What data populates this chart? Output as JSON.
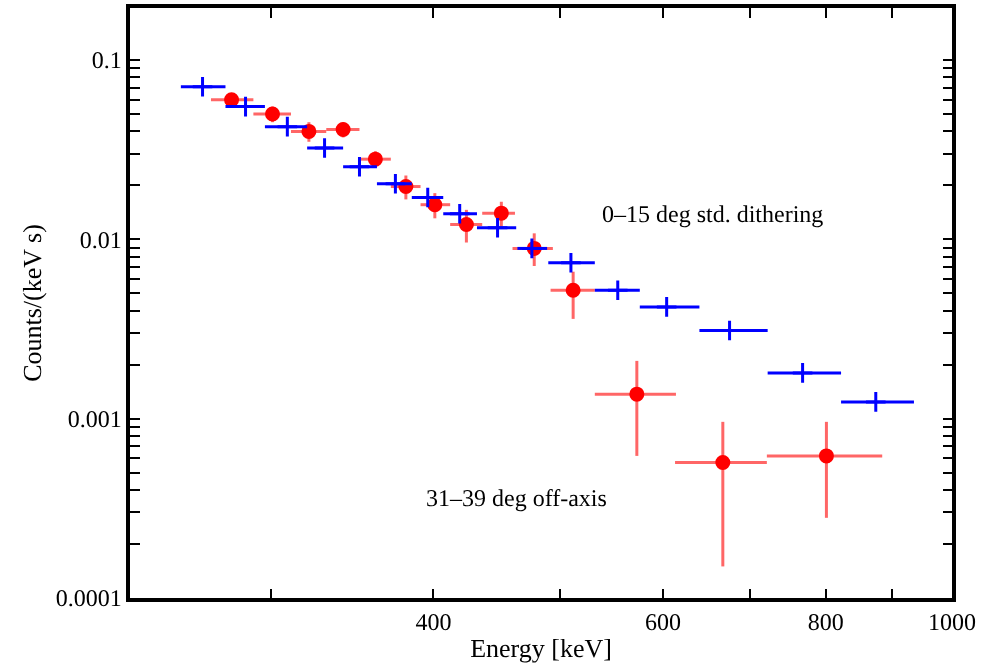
{
  "chart_data": {
    "type": "scatter",
    "xlabel": "Energy [keV]",
    "ylabel": "Counts/(keV s)",
    "log": "xy",
    "grid": false,
    "xlim": [
      234,
      1000
    ],
    "ylim": [
      0.0001,
      0.195
    ],
    "xticks": [
      {
        "value": 300,
        "label": null
      },
      400,
      {
        "value": 500,
        "label": null
      },
      600,
      {
        "value": 700,
        "label": null
      },
      800,
      {
        "value": 900,
        "label": null
      },
      1000
    ],
    "yticks": [
      0.0001,
      {
        "value": 0.0002,
        "label": null
      },
      {
        "value": 0.0003,
        "label": null
      },
      {
        "value": 0.0004,
        "label": null
      },
      {
        "value": 0.0005,
        "label": null
      },
      {
        "value": 0.0006,
        "label": null
      },
      {
        "value": 0.0007,
        "label": null
      },
      {
        "value": 0.0008,
        "label": null
      },
      {
        "value": 0.0009,
        "label": null
      },
      0.001,
      {
        "value": 0.002,
        "label": null
      },
      {
        "value": 0.003,
        "label": null
      },
      {
        "value": 0.004,
        "label": null
      },
      {
        "value": 0.005,
        "label": null
      },
      {
        "value": 0.006,
        "label": null
      },
      {
        "value": 0.007,
        "label": null
      },
      {
        "value": 0.008,
        "label": null
      },
      {
        "value": 0.009,
        "label": null
      },
      0.01,
      {
        "value": 0.02,
        "label": null
      },
      {
        "value": 0.03,
        "label": null
      },
      {
        "value": 0.04,
        "label": null
      },
      {
        "value": 0.05,
        "label": null
      },
      {
        "value": 0.06,
        "label": null
      },
      {
        "value": 0.07,
        "label": null
      },
      {
        "value": 0.08,
        "label": null
      },
      {
        "value": 0.09,
        "label": null
      },
      0.1
    ],
    "series": [
      {
        "color": "#ff0000",
        "marker": "circle",
        "x": [
          280,
          301,
          321,
          341,
          361,
          381,
          401,
          424,
          451,
          478,
          512,
          573,
          667,
          801
        ],
        "values": [
          0.06,
          0.05,
          0.04,
          0.041,
          0.028,
          0.0197,
          0.0156,
          0.0121,
          0.014,
          0.0089,
          0.0052,
          0.00137,
          0.00057,
          0.00062
        ],
        "xerrors": [
          [
            270,
            291
          ],
          [
            291,
            311
          ],
          [
            311,
            331
          ],
          [
            331,
            351
          ],
          [
            351,
            371
          ],
          [
            371,
            391
          ],
          [
            391,
            412
          ],
          [
            412,
            436
          ],
          [
            436,
            462
          ],
          [
            460,
            494
          ],
          [
            492,
            532
          ],
          [
            532,
            614
          ],
          [
            613,
            721
          ],
          [
            721,
            884
          ]
        ],
        "errors": [
          0.005,
          0.005,
          0.005,
          0.004,
          0.003,
          0.003,
          0.0025,
          0.0025,
          0.0022,
          [
            0.0071,
            0.0108
          ],
          [
            0.0036,
            0.0066
          ],
          [
            0.00062,
            0.0021
          ],
          [
            0.00015,
            0.00096
          ],
          [
            0.00028,
            0.00096
          ]
        ]
      },
      {
        "color": "#0000ff",
        "marker": "cross",
        "x": [
          266,
          287,
          309,
          330,
          351,
          374,
          396,
          419,
          448,
          476,
          510,
          554,
          604,
          675,
          768,
          874
        ],
        "values": [
          0.071,
          0.055,
          0.0425,
          0.0323,
          0.0254,
          0.0204,
          0.0171,
          0.0139,
          0.0116,
          0.0089,
          0.0074,
          0.0052,
          0.0042,
          0.0031,
          0.0018,
          0.00124
        ],
        "xerrors": [
          [
            256,
            277
          ],
          [
            277,
            297
          ],
          [
            297,
            320
          ],
          [
            320,
            341
          ],
          [
            341,
            362
          ],
          [
            362,
            385
          ],
          [
            385,
            407
          ],
          [
            407,
            432
          ],
          [
            432,
            463
          ],
          [
            464,
            489
          ],
          [
            490,
            532
          ],
          [
            532,
            576
          ],
          [
            576,
            640
          ],
          [
            640,
            722
          ],
          [
            722,
            822
          ],
          [
            822,
            935
          ]
        ]
      }
    ],
    "annotations": [
      "0–15 deg std. dithering",
      "31–39 deg off-axis"
    ]
  }
}
